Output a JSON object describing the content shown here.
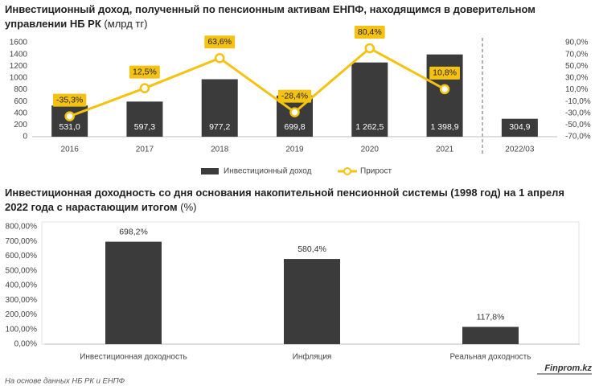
{
  "chart_data": [
    {
      "type": "bar",
      "title": "Инвестиционный доход, полученный по пенсионным активам ЕНПФ, находящимся в доверительном управлении НБ РК",
      "unit": "(млрд тг)",
      "categories": [
        "2016",
        "2017",
        "2018",
        "2019",
        "2020",
        "2021",
        "2022/03"
      ],
      "series": [
        {
          "name": "Инвестиционный доход",
          "type": "bar",
          "color": "#3b3b3b",
          "values": [
            531.0,
            597.3,
            977.2,
            699.8,
            1262.5,
            1398.9,
            304.9
          ],
          "value_labels": [
            "531,0",
            "597,3",
            "977,2",
            "699,8",
            "1 262,5",
            "1 398,9",
            "304,9"
          ]
        },
        {
          "name": "Прирост",
          "type": "line",
          "axis": "y2",
          "color": "#f5c211",
          "values": [
            -35.3,
            12.5,
            63.6,
            -28.4,
            80.4,
            10.8,
            null
          ],
          "value_labels": [
            "-35,3%",
            "12,5%",
            "63,6%",
            "-28,4%",
            "80,4%",
            "10,8%",
            null
          ]
        }
      ],
      "ylim": [
        0,
        1600
      ],
      "yticks": [
        0,
        200,
        400,
        600,
        800,
        1000,
        1200,
        1400,
        1600
      ],
      "y2lim": [
        -70,
        90
      ],
      "y2ticks": [
        {
          "value": -70,
          "label": "-70,0%"
        },
        {
          "value": -50,
          "label": "-50,0%"
        },
        {
          "value": -30,
          "label": "-30,0%"
        },
        {
          "value": -10,
          "label": "-10,0%"
        },
        {
          "value": 10,
          "label": "10,0%"
        },
        {
          "value": 30,
          "label": "30,0%"
        },
        {
          "value": 50,
          "label": "50,0%"
        },
        {
          "value": 70,
          "label": "70,0%"
        },
        {
          "value": 90,
          "label": "90,0%"
        }
      ],
      "grid": false,
      "legend": "bottom"
    },
    {
      "type": "bar",
      "title": "Инвестиционная доходность со дня основания накопительной пенсионной системы (1998 год) на 1 апреля 2022 года с нарастающим итогом",
      "unit": "(%)",
      "categories": [
        "Инвестиционная доходность",
        "Инфляция",
        "Реальная доходность"
      ],
      "values": [
        698.2,
        580.4,
        117.8
      ],
      "value_labels": [
        "698,2%",
        "580,4%",
        "117,8%"
      ],
      "color": "#3b3b3b",
      "ylim": [
        0,
        800
      ],
      "yticks": [
        {
          "value": 0,
          "label": "0,00%"
        },
        {
          "value": 100,
          "label": "100,00%"
        },
        {
          "value": 200,
          "label": "200,00%"
        },
        {
          "value": 300,
          "label": "300,00%"
        },
        {
          "value": 400,
          "label": "400,00%"
        },
        {
          "value": 500,
          "label": "500,00%"
        },
        {
          "value": 600,
          "label": "600,00%"
        },
        {
          "value": 700,
          "label": "700,00%"
        },
        {
          "value": 800,
          "label": "800,00%"
        }
      ],
      "grid": false
    }
  ],
  "source": "На основе данных НБ РК и ЕНПФ",
  "brand": "Finprom.kz"
}
